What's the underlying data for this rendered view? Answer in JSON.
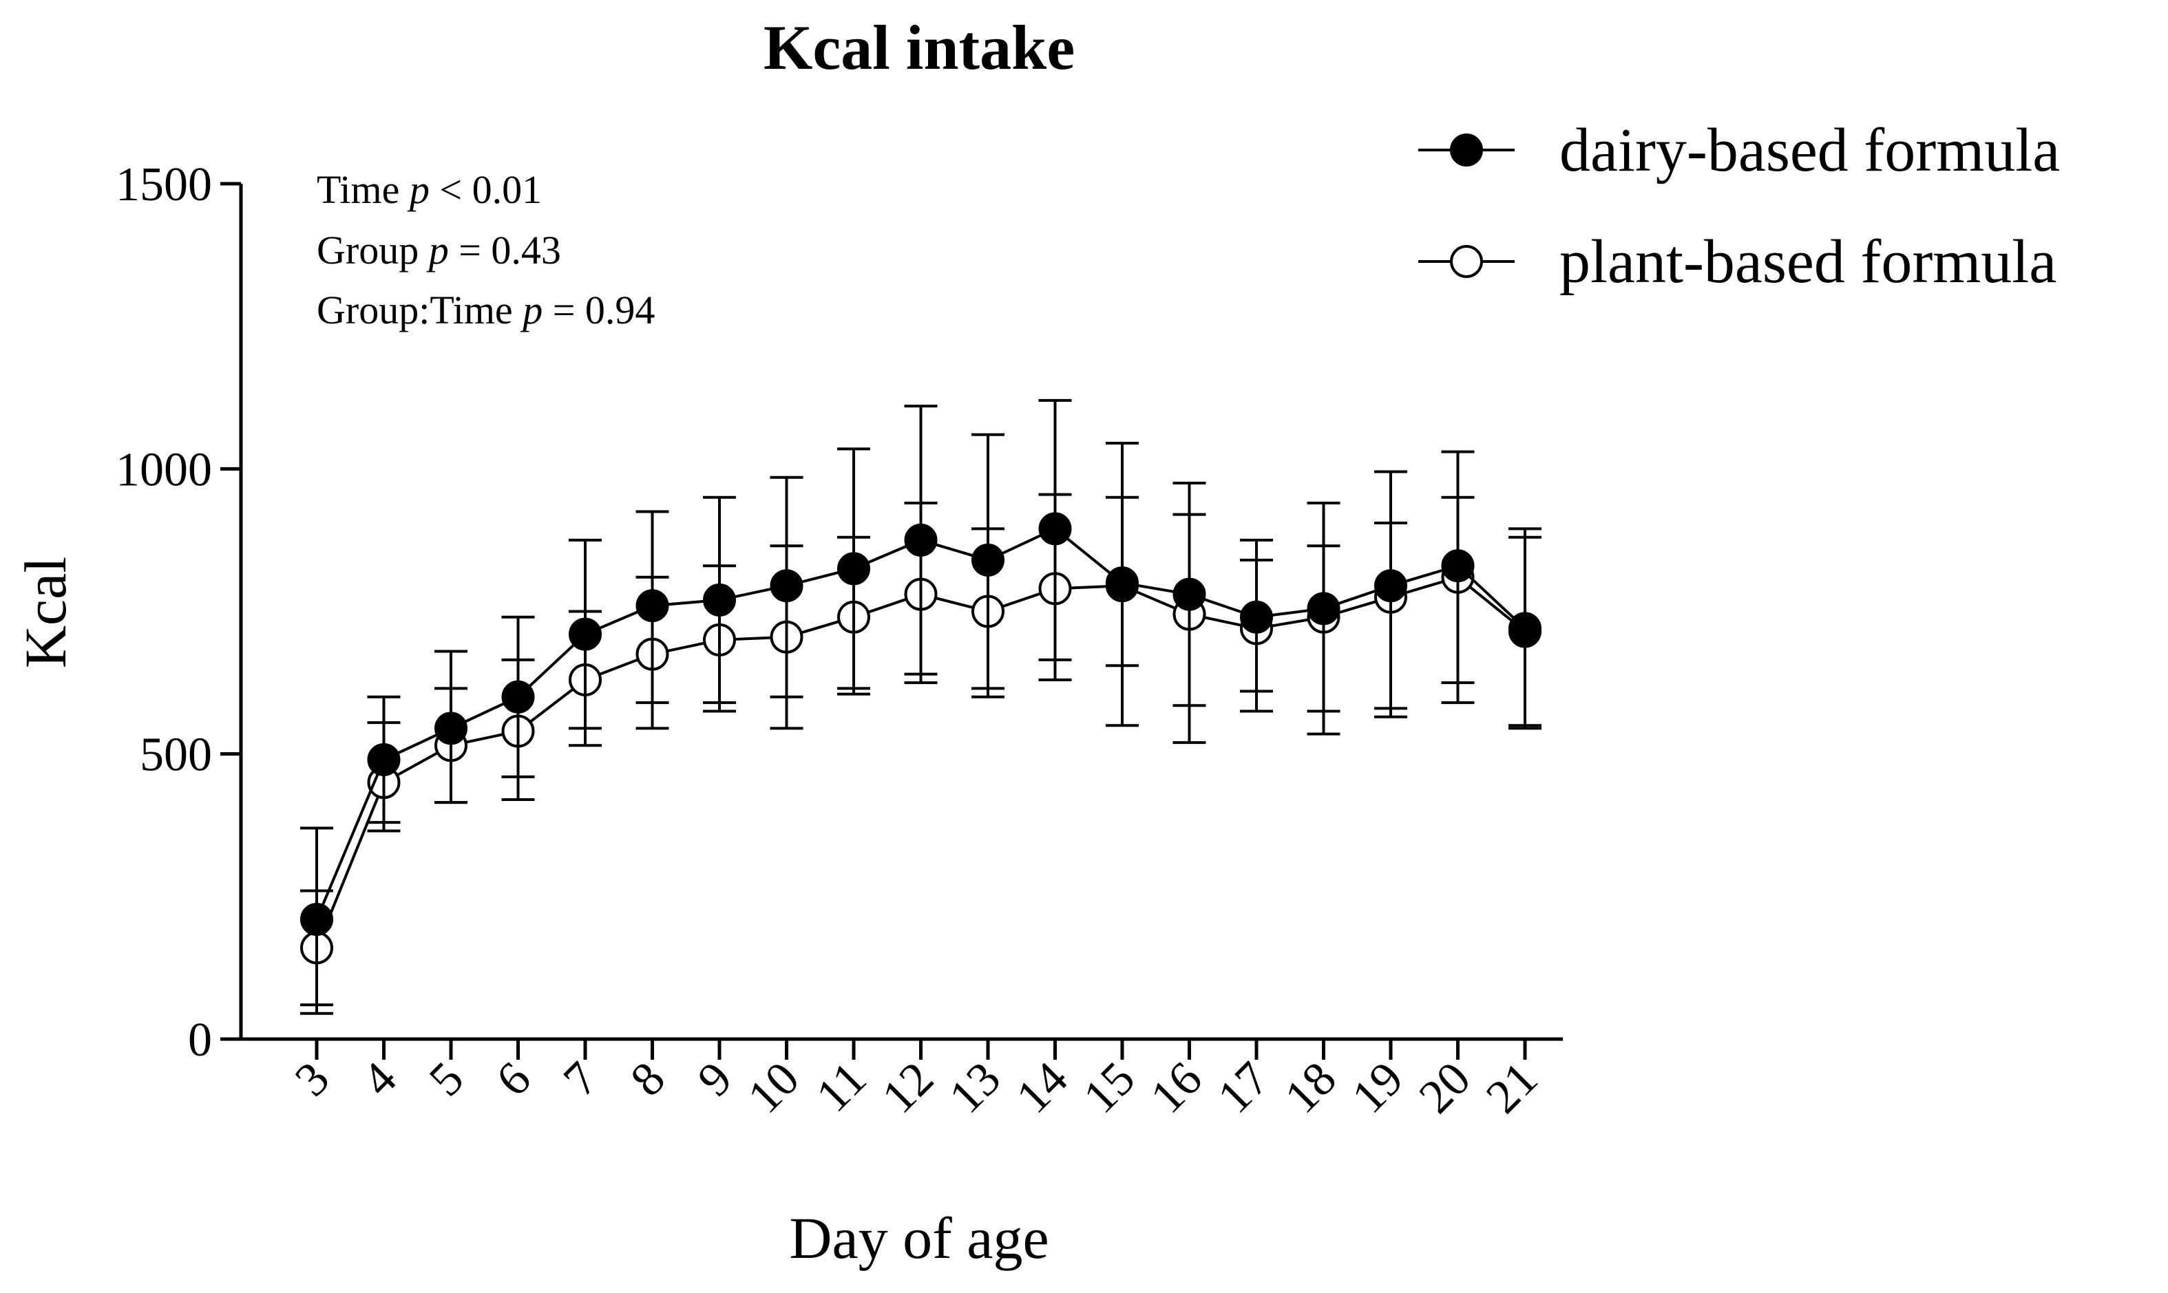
{
  "chart_data": {
    "type": "line",
    "title": "Kcal intake",
    "xlabel": "Day of age",
    "ylabel": "Kcal",
    "ylim": [
      0,
      1500
    ],
    "yticks": [
      0,
      500,
      1000,
      1500
    ],
    "categories": [
      "3",
      "4",
      "5",
      "6",
      "7",
      "8",
      "9",
      "10",
      "11",
      "12",
      "13",
      "14",
      "15",
      "16",
      "17",
      "18",
      "19",
      "20",
      "21"
    ],
    "grid": false,
    "legend_position": "top-right",
    "series": [
      {
        "name": "dairy-based formula",
        "marker": "filled-circle",
        "values": [
          210,
          490,
          545,
          600,
          710,
          760,
          770,
          795,
          825,
          875,
          840,
          895,
          800,
          780,
          740,
          755,
          795,
          830,
          720
        ],
        "upper": [
          370,
          600,
          680,
          740,
          875,
          925,
          950,
          985,
          1035,
          1110,
          1060,
          1120,
          1045,
          975,
          875,
          940,
          995,
          1030,
          895
        ],
        "lower": [
          60,
          380,
          415,
          460,
          545,
          590,
          590,
          600,
          615,
          640,
          615,
          665,
          550,
          585,
          610,
          575,
          580,
          625,
          550
        ]
      },
      {
        "name": "plant-based formula",
        "marker": "open-circle",
        "values": [
          160,
          450,
          515,
          540,
          630,
          675,
          700,
          705,
          740,
          780,
          750,
          790,
          795,
          745,
          720,
          740,
          775,
          810,
          715
        ],
        "upper": [
          260,
          555,
          615,
          665,
          750,
          810,
          830,
          865,
          880,
          940,
          895,
          955,
          950,
          920,
          840,
          865,
          905,
          950,
          880
        ],
        "lower": [
          45,
          365,
          415,
          420,
          515,
          545,
          575,
          545,
          605,
          625,
          600,
          630,
          655,
          520,
          575,
          535,
          565,
          590,
          545
        ]
      }
    ],
    "annotations": [
      {
        "label": "Time",
        "p_symbol": "p",
        "rest": "< 0.01"
      },
      {
        "label": "Group",
        "p_symbol": "p",
        "rest": " = 0.43"
      },
      {
        "label": "Group:Time",
        "p_symbol": "p",
        "rest": " = 0.94"
      }
    ]
  }
}
